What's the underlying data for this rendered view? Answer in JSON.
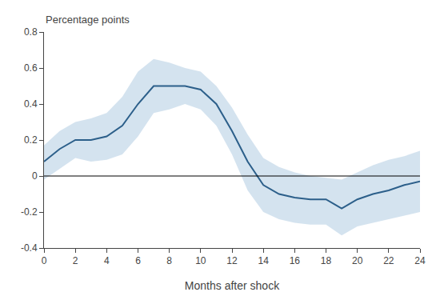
{
  "chart_data": {
    "type": "line",
    "xlabel": "Months after shock",
    "ylabel": "Percentage points",
    "x": [
      0,
      1,
      2,
      3,
      4,
      5,
      6,
      7,
      8,
      9,
      10,
      11,
      12,
      13,
      14,
      15,
      16,
      17,
      18,
      19,
      20,
      21,
      22,
      23,
      24
    ],
    "values": [
      0.08,
      0.15,
      0.2,
      0.2,
      0.22,
      0.28,
      0.4,
      0.5,
      0.5,
      0.5,
      0.48,
      0.4,
      0.25,
      0.08,
      -0.05,
      -0.1,
      -0.12,
      -0.13,
      -0.13,
      -0.18,
      -0.13,
      -0.1,
      -0.08,
      -0.05,
      -0.03
    ],
    "color": "#2c5f8a",
    "band": {
      "upper": [
        0.17,
        0.25,
        0.3,
        0.32,
        0.35,
        0.44,
        0.58,
        0.65,
        0.63,
        0.6,
        0.58,
        0.5,
        0.38,
        0.23,
        0.1,
        0.05,
        0.02,
        0.0,
        -0.01,
        -0.02,
        0.02,
        0.06,
        0.09,
        0.11,
        0.14
      ],
      "lower": [
        -0.02,
        0.04,
        0.1,
        0.08,
        0.09,
        0.12,
        0.22,
        0.35,
        0.37,
        0.4,
        0.37,
        0.28,
        0.12,
        -0.08,
        -0.2,
        -0.24,
        -0.26,
        -0.27,
        -0.27,
        -0.33,
        -0.28,
        -0.26,
        -0.24,
        -0.22,
        -0.2
      ],
      "color": "#aac8e0"
    },
    "zero_line": {
      "y": 0,
      "color": "#000000"
    },
    "xlim": [
      0,
      24
    ],
    "ylim": [
      -0.4,
      0.8
    ],
    "xticks": [
      0,
      2,
      4,
      6,
      8,
      10,
      12,
      14,
      16,
      18,
      20,
      22,
      24
    ],
    "yticks": [
      -0.4,
      -0.2,
      0,
      0.2,
      0.4,
      0.6,
      0.8
    ],
    "grid": false
  }
}
